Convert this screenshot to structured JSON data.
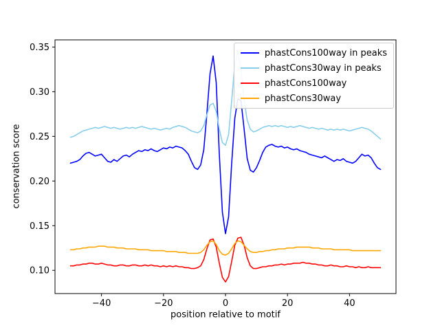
{
  "chart_data": {
    "type": "line",
    "title": "",
    "xlabel": "position relative to motif",
    "ylabel": "conservation score",
    "xlim": [
      -55,
      55
    ],
    "ylim": [
      0.074,
      0.358
    ],
    "x_ticks": [
      -40,
      -20,
      0,
      20,
      40
    ],
    "y_ticks": [
      0.1,
      0.15,
      0.2,
      0.25,
      0.3,
      0.35
    ],
    "grid": false,
    "legend_position": "upper right",
    "x_start": -50,
    "x_step": 1,
    "series": [
      {
        "name": "phastCons100way in peaks",
        "color": "#0000ff",
        "values": [
          0.22,
          0.221,
          0.222,
          0.224,
          0.228,
          0.231,
          0.232,
          0.23,
          0.228,
          0.229,
          0.23,
          0.226,
          0.222,
          0.221,
          0.224,
          0.222,
          0.225,
          0.228,
          0.229,
          0.227,
          0.23,
          0.232,
          0.234,
          0.233,
          0.235,
          0.234,
          0.236,
          0.234,
          0.233,
          0.235,
          0.237,
          0.236,
          0.238,
          0.237,
          0.239,
          0.238,
          0.237,
          0.234,
          0.23,
          0.222,
          0.215,
          0.213,
          0.218,
          0.235,
          0.275,
          0.32,
          0.34,
          0.31,
          0.23,
          0.165,
          0.141,
          0.16,
          0.22,
          0.27,
          0.292,
          0.29,
          0.258,
          0.225,
          0.212,
          0.21,
          0.215,
          0.223,
          0.232,
          0.238,
          0.24,
          0.241,
          0.239,
          0.238,
          0.239,
          0.237,
          0.238,
          0.236,
          0.235,
          0.236,
          0.234,
          0.233,
          0.232,
          0.23,
          0.229,
          0.228,
          0.227,
          0.226,
          0.228,
          0.226,
          0.224,
          0.222,
          0.224,
          0.223,
          0.225,
          0.222,
          0.221,
          0.22,
          0.222,
          0.226,
          0.23,
          0.228,
          0.229,
          0.226,
          0.22,
          0.215,
          0.213
        ]
      },
      {
        "name": "phastCons30way in peaks",
        "color": "#87ceeb",
        "values": [
          0.249,
          0.25,
          0.252,
          0.254,
          0.256,
          0.257,
          0.258,
          0.259,
          0.26,
          0.259,
          0.26,
          0.261,
          0.26,
          0.259,
          0.26,
          0.259,
          0.258,
          0.259,
          0.26,
          0.259,
          0.26,
          0.259,
          0.26,
          0.261,
          0.26,
          0.259,
          0.258,
          0.259,
          0.258,
          0.257,
          0.258,
          0.259,
          0.258,
          0.26,
          0.261,
          0.262,
          0.261,
          0.26,
          0.258,
          0.256,
          0.255,
          0.254,
          0.256,
          0.262,
          0.274,
          0.285,
          0.287,
          0.278,
          0.258,
          0.243,
          0.24,
          0.252,
          0.29,
          0.33,
          0.345,
          0.325,
          0.29,
          0.268,
          0.258,
          0.255,
          0.256,
          0.258,
          0.26,
          0.261,
          0.262,
          0.261,
          0.262,
          0.261,
          0.262,
          0.261,
          0.26,
          0.261,
          0.26,
          0.261,
          0.262,
          0.261,
          0.26,
          0.259,
          0.26,
          0.259,
          0.258,
          0.259,
          0.258,
          0.257,
          0.258,
          0.257,
          0.258,
          0.257,
          0.258,
          0.257,
          0.256,
          0.257,
          0.258,
          0.259,
          0.26,
          0.259,
          0.258,
          0.256,
          0.253,
          0.25,
          0.247
        ]
      },
      {
        "name": "phastCons100way",
        "color": "#ff0000",
        "values": [
          0.105,
          0.105,
          0.106,
          0.106,
          0.107,
          0.107,
          0.108,
          0.108,
          0.107,
          0.107,
          0.108,
          0.107,
          0.106,
          0.106,
          0.105,
          0.105,
          0.106,
          0.106,
          0.105,
          0.105,
          0.106,
          0.106,
          0.105,
          0.105,
          0.106,
          0.105,
          0.106,
          0.105,
          0.105,
          0.104,
          0.105,
          0.104,
          0.105,
          0.104,
          0.105,
          0.104,
          0.104,
          0.103,
          0.103,
          0.102,
          0.102,
          0.103,
          0.105,
          0.112,
          0.124,
          0.134,
          0.135,
          0.126,
          0.108,
          0.092,
          0.087,
          0.093,
          0.11,
          0.128,
          0.136,
          0.137,
          0.128,
          0.114,
          0.105,
          0.102,
          0.102,
          0.103,
          0.104,
          0.104,
          0.105,
          0.105,
          0.106,
          0.106,
          0.107,
          0.106,
          0.107,
          0.107,
          0.108,
          0.108,
          0.108,
          0.109,
          0.108,
          0.108,
          0.107,
          0.107,
          0.106,
          0.106,
          0.105,
          0.105,
          0.106,
          0.105,
          0.105,
          0.104,
          0.104,
          0.105,
          0.104,
          0.104,
          0.103,
          0.104,
          0.103,
          0.103,
          0.104,
          0.103,
          0.103,
          0.103,
          0.103
        ]
      },
      {
        "name": "phastCons30way",
        "color": "#ffa500",
        "values": [
          0.123,
          0.123,
          0.124,
          0.124,
          0.125,
          0.125,
          0.126,
          0.126,
          0.126,
          0.127,
          0.127,
          0.127,
          0.126,
          0.126,
          0.126,
          0.125,
          0.125,
          0.125,
          0.124,
          0.124,
          0.124,
          0.124,
          0.123,
          0.123,
          0.123,
          0.123,
          0.122,
          0.122,
          0.122,
          0.122,
          0.122,
          0.121,
          0.121,
          0.121,
          0.121,
          0.12,
          0.12,
          0.12,
          0.119,
          0.119,
          0.119,
          0.119,
          0.12,
          0.123,
          0.128,
          0.132,
          0.133,
          0.129,
          0.122,
          0.118,
          0.117,
          0.119,
          0.124,
          0.13,
          0.133,
          0.132,
          0.128,
          0.124,
          0.121,
          0.12,
          0.12,
          0.121,
          0.121,
          0.122,
          0.122,
          0.123,
          0.123,
          0.124,
          0.124,
          0.124,
          0.125,
          0.125,
          0.125,
          0.126,
          0.126,
          0.126,
          0.126,
          0.126,
          0.125,
          0.125,
          0.125,
          0.124,
          0.124,
          0.124,
          0.124,
          0.123,
          0.123,
          0.123,
          0.123,
          0.123,
          0.123,
          0.122,
          0.122,
          0.122,
          0.122,
          0.122,
          0.122,
          0.122,
          0.122,
          0.122,
          0.122
        ]
      }
    ]
  }
}
